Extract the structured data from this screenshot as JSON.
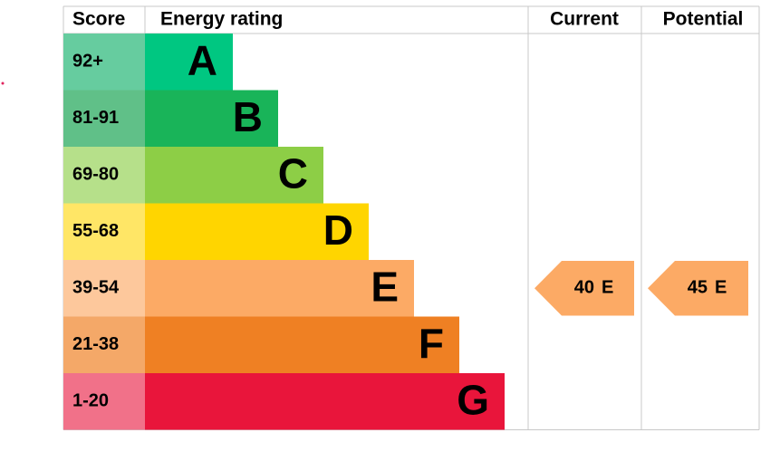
{
  "header": {
    "score": "Score",
    "rating": "Energy rating",
    "current": "Current",
    "potential": "Potential"
  },
  "bands": [
    {
      "score": "92+",
      "letter": "A",
      "color": "#00c781",
      "light": "#66cc9f"
    },
    {
      "score": "81-91",
      "letter": "B",
      "color": "#19b459",
      "light": "#60c088"
    },
    {
      "score": "69-80",
      "letter": "C",
      "color": "#8dce46",
      "light": "#b6e08a"
    },
    {
      "score": "55-68",
      "letter": "D",
      "color": "#ffd500",
      "light": "#ffe666"
    },
    {
      "score": "39-54",
      "letter": "E",
      "color": "#fcaa65",
      "light": "#fdc89c"
    },
    {
      "score": "21-38",
      "letter": "F",
      "color": "#ef8023",
      "light": "#f4a868"
    },
    {
      "score": "1-20",
      "letter": "G",
      "color": "#e9153b",
      "light": "#f17189"
    }
  ],
  "current": {
    "score": 40,
    "band": "E"
  },
  "potential": {
    "score": 45,
    "band": "E"
  }
}
